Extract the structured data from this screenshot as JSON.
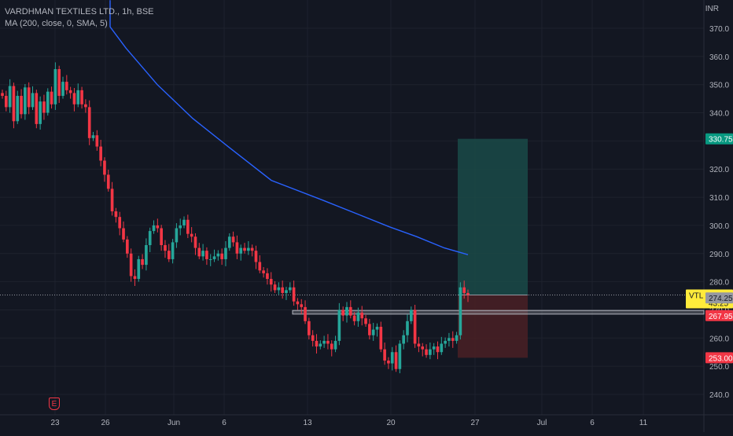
{
  "legend": {
    "symbol": "VARDHMAN TEXTILES LTD., 1h, BSE",
    "indicator": "MA (200, close, 0, SMA, 5)"
  },
  "currency": "INR",
  "earnings_marker": "E",
  "colors": {
    "background": "#131722",
    "up": "#26a69a",
    "down": "#f23645",
    "ma_line": "#2962ff",
    "target_zone": "#1a4a48",
    "stop_zone": "#4a2024"
  },
  "chart_data": {
    "type": "candlestick",
    "title": "VARDHMAN TEXTILES LTD., 1h, BSE",
    "ylim": [
      235,
      376
    ],
    "y_ticks": [
      240,
      250,
      260,
      270,
      280,
      290,
      300,
      310,
      320,
      330,
      340,
      350,
      360,
      370
    ],
    "x_ticks": [
      "23",
      "26",
      "Jun",
      "6",
      "13",
      "20",
      "27",
      "Jul",
      "6",
      "11"
    ],
    "series": [
      {
        "name": "VARDHMAN TEXTILES LTD.",
        "values": [
          346.0,
          342.0,
          349.5,
          337.0,
          346.0,
          339.5,
          349.0,
          342.0,
          347.0,
          336.0,
          344.0,
          340.0,
          347.5,
          343.0,
          355.5,
          346.0,
          351.0,
          348.0,
          347.0,
          343.0,
          348.0,
          343.0,
          342.0,
          331.0,
          332.0,
          328.0,
          323.0,
          318.0,
          313.0,
          305.0,
          303.0,
          299.0,
          295.0,
          290.0,
          282.0,
          281.0,
          288.0,
          286.0,
          293.0,
          298.0,
          300.0,
          299.0,
          293.0,
          291.0,
          288.0,
          294.0,
          299.0,
          300.0,
          302.0,
          297.0,
          296.0,
          292.0,
          289.0,
          291.0,
          288.0,
          288.0,
          289.0,
          290.0,
          288.0,
          292.0,
          296.0,
          294.0,
          290.0,
          292.0,
          291.0,
          292.0,
          291.0,
          287.0,
          284.0,
          283.0,
          281.0,
          279.0,
          277.0,
          278.0,
          276.0,
          277.0,
          278.0,
          273.0,
          272.0,
          271.0,
          266.0,
          261.0,
          259.0,
          257.0,
          258.0,
          259.0,
          258.0,
          256.0,
          259.0,
          270.0,
          268.0,
          271.0,
          268.0,
          266.0,
          269.0,
          267.0,
          265.0,
          261.0,
          263.0,
          264.0,
          256.0,
          252.0,
          251.0,
          255.0,
          249.0,
          258.0,
          261.0,
          266.0,
          270.0,
          258.0,
          257.0,
          256.0,
          254.0,
          256.0,
          257.0,
          255.0,
          258.0,
          259.0,
          260.0,
          259.0,
          261.0,
          278.0,
          276.0,
          275.3
        ]
      },
      {
        "name": "MA (200, close, 0, SMA, 5)",
        "values": [
          {
            "t": "2022-05-20T11:15",
            "v": 380.0
          },
          {
            "t": "2022-05-23T09:15",
            "v": 370.5
          },
          {
            "t": "2022-05-24T09:15",
            "v": 363.0
          },
          {
            "t": "2022-05-26T09:15",
            "v": 350.0
          },
          {
            "t": "2022-05-30T09:15",
            "v": 338.0
          },
          {
            "t": "2022-06-01T09:15",
            "v": 328.0
          },
          {
            "t": "2022-06-07T09:15",
            "v": 316.0
          },
          {
            "t": "2022-06-10T09:15",
            "v": 309.0
          },
          {
            "t": "2022-06-14T09:15",
            "v": 304.0
          },
          {
            "t": "2022-06-16T09:15",
            "v": 299.5
          },
          {
            "t": "2022-06-20T09:15",
            "v": 296.0
          },
          {
            "t": "2022-06-22T09:15",
            "v": 292.0
          },
          {
            "t": "2022-06-24T15:15",
            "v": 289.6
          }
        ]
      }
    ],
    "levels": [
      {
        "label": "330.75",
        "value": 330.75,
        "color": "#089981",
        "dark": false
      },
      {
        "label": "VTL  275.30",
        "value": 275.3,
        "countdown": "43:25",
        "color": "#ffeb3b",
        "dark": true
      },
      {
        "label": "274.25",
        "value": 274.25,
        "color": "#9598a1",
        "dark": true
      },
      {
        "label": "267.95",
        "value": 267.95,
        "color": "#f23645",
        "dark": false
      },
      {
        "label": "253.00",
        "value": 253.0,
        "color": "#f23645",
        "dark": false
      }
    ],
    "position": {
      "entry": 275.3,
      "target": 330.75,
      "stop": 253.0
    },
    "support_band": {
      "from": 268.5,
      "to": 269.8
    }
  }
}
